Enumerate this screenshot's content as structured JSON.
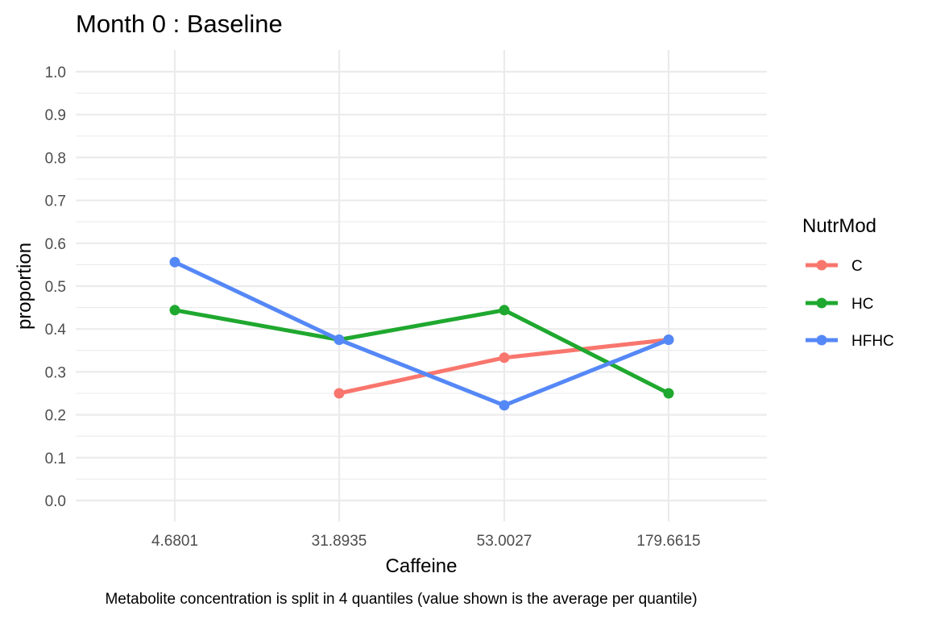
{
  "chart_data": {
    "type": "line",
    "title": "Month 0 : Baseline",
    "xlabel": "Caffeine",
    "ylabel": "proportion",
    "caption": "Metabolite concentration is split in 4 quantiles (value shown is the average per quantile)",
    "categories": [
      "4.6801",
      "31.8935",
      "53.0027",
      "179.6615"
    ],
    "ylim": [
      0.0,
      1.0
    ],
    "yticks": [
      "0.0",
      "0.1",
      "0.2",
      "0.3",
      "0.4",
      "0.5",
      "0.6",
      "0.7",
      "0.8",
      "0.9",
      "1.0"
    ],
    "grid": true,
    "legend": {
      "title": "NutrMod",
      "placement": "right"
    },
    "series": [
      {
        "name": "C",
        "color": "#F8766D",
        "values": [
          null,
          0.25,
          0.333,
          0.375
        ]
      },
      {
        "name": "HC",
        "color": "#1FA82F",
        "values": [
          0.444,
          0.375,
          0.444,
          0.25
        ]
      },
      {
        "name": "HFHC",
        "color": "#5588F7",
        "values": [
          0.556,
          0.375,
          0.222,
          0.375
        ]
      }
    ]
  }
}
